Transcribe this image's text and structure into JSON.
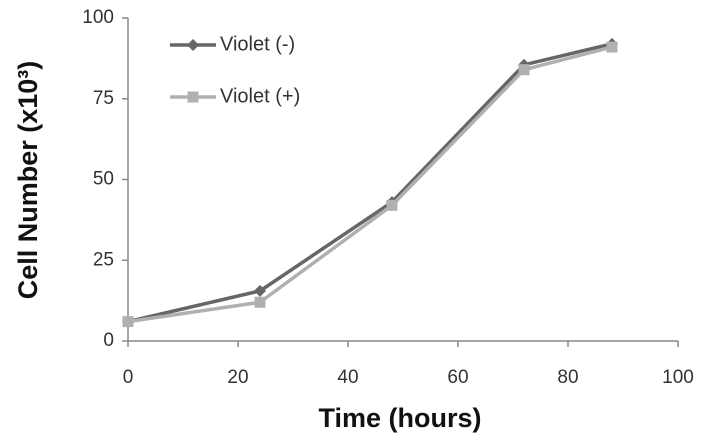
{
  "chart_data": {
    "type": "line",
    "x_label": "Time (hours)",
    "y_label": "Cell Number (x10³)",
    "x": [
      0,
      24,
      48,
      72,
      88
    ],
    "series": [
      {
        "name": "Violet (-)",
        "color": "#666666",
        "marker": "diamond",
        "values": [
          6,
          15.5,
          43,
          85.5,
          92
        ]
      },
      {
        "name": "Violet (+)",
        "color": "#b0b0b0",
        "marker": "square",
        "values": [
          6,
          12,
          42,
          84,
          91
        ]
      }
    ],
    "xlim": [
      0,
      100
    ],
    "xticks": [
      0,
      20,
      40,
      60,
      80,
      100
    ],
    "ylim": [
      0,
      100
    ],
    "yticks": [
      0,
      25,
      50,
      75,
      100
    ],
    "grid": false,
    "legend": "upper left"
  }
}
